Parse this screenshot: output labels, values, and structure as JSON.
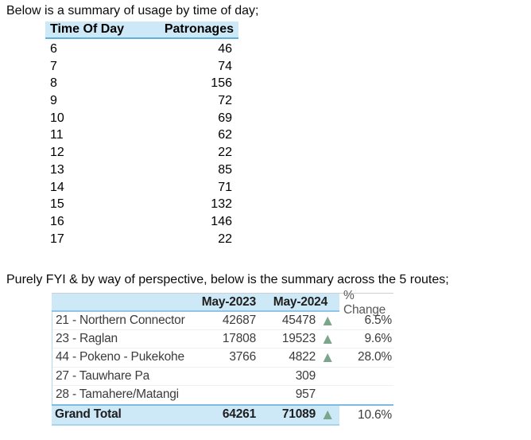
{
  "intro": {
    "line1": "Below is a summary of usage by time of day;",
    "line2": "Purely FYI & by way of perspective, below is the summary across the 5 routes;"
  },
  "usage_table": {
    "headers": {
      "time": "Time Of Day",
      "patronage": "Patronages"
    },
    "rows": [
      {
        "time": "6",
        "patronage": "46"
      },
      {
        "time": "7",
        "patronage": "74"
      },
      {
        "time": "8",
        "patronage": "156"
      },
      {
        "time": "9",
        "patronage": "72"
      },
      {
        "time": "10",
        "patronage": "69"
      },
      {
        "time": "11",
        "patronage": "62"
      },
      {
        "time": "12",
        "patronage": "22"
      },
      {
        "time": "13",
        "patronage": "85"
      },
      {
        "time": "14",
        "patronage": "71"
      },
      {
        "time": "15",
        "patronage": "132"
      },
      {
        "time": "16",
        "patronage": "146"
      },
      {
        "time": "17",
        "patronage": "22"
      }
    ]
  },
  "routes_table": {
    "headers": {
      "route": "",
      "may2023": "May-2023",
      "may2024": "May-2024",
      "pct_change": "% Change"
    },
    "rows": [
      {
        "route": "21 - Northern Connector",
        "may2023": "42687",
        "may2024": "45478",
        "arrow": "▲",
        "pct": "6.5%"
      },
      {
        "route": "23 - Raglan",
        "may2023": "17808",
        "may2024": "19523",
        "arrow": "▲",
        "pct": "9.6%"
      },
      {
        "route": "44 - Pokeno - Pukekohe",
        "may2023": "3766",
        "may2024": "4822",
        "arrow": "▲",
        "pct": "28.0%"
      },
      {
        "route": "27 - Tauwhare Pa",
        "may2023": "",
        "may2024": "309",
        "arrow": "",
        "pct": ""
      },
      {
        "route": "28 - Tamahere/Matangi",
        "may2023": "",
        "may2024": "957",
        "arrow": "",
        "pct": ""
      }
    ],
    "grand_total": {
      "route": "Grand Total",
      "may2023": "64261",
      "may2024": "71089",
      "arrow": "▲",
      "pct": "10.6%"
    }
  },
  "colors": {
    "header_bg": "#cde8f6",
    "table1_rule": "#5fafdf",
    "table2_rule": "#8fc5e6",
    "arrow_green": "#7ba68c",
    "muted_header_text": "#595959",
    "body_text": "#3b3b3b"
  },
  "icons": {
    "increase_arrow": "▲"
  }
}
